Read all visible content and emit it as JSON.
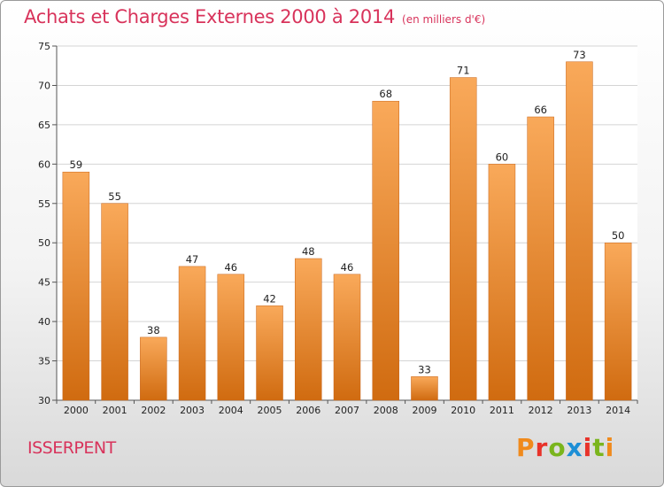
{
  "chart_data": {
    "type": "bar",
    "title": "Achats et Charges Externes 2000 à 2014",
    "subtitle": "(en milliers d'€)",
    "categories": [
      "2000",
      "2001",
      "2002",
      "2003",
      "2004",
      "2005",
      "2006",
      "2007",
      "2008",
      "2009",
      "2010",
      "2011",
      "2012",
      "2013",
      "2014"
    ],
    "values": [
      59,
      55,
      38,
      47,
      46,
      42,
      48,
      46,
      68,
      33,
      71,
      60,
      66,
      73,
      50
    ],
    "ylim": [
      30,
      75
    ],
    "yticks": [
      30,
      35,
      40,
      45,
      50,
      55,
      60,
      65,
      70,
      75
    ],
    "xlabel": "",
    "ylabel": "",
    "grid": "horizontal",
    "legend": "none",
    "bar_color_top": "#f9a95a",
    "bar_color_bottom": "#d06b10"
  },
  "footer": {
    "commune": "ISSERPENT",
    "logo": "Proxiti",
    "logo_colors": [
      "#f08a1c",
      "#e8332a",
      "#7ab51d",
      "#1d8fd6",
      "#e8332a",
      "#7ab51d",
      "#f08a1c"
    ]
  }
}
